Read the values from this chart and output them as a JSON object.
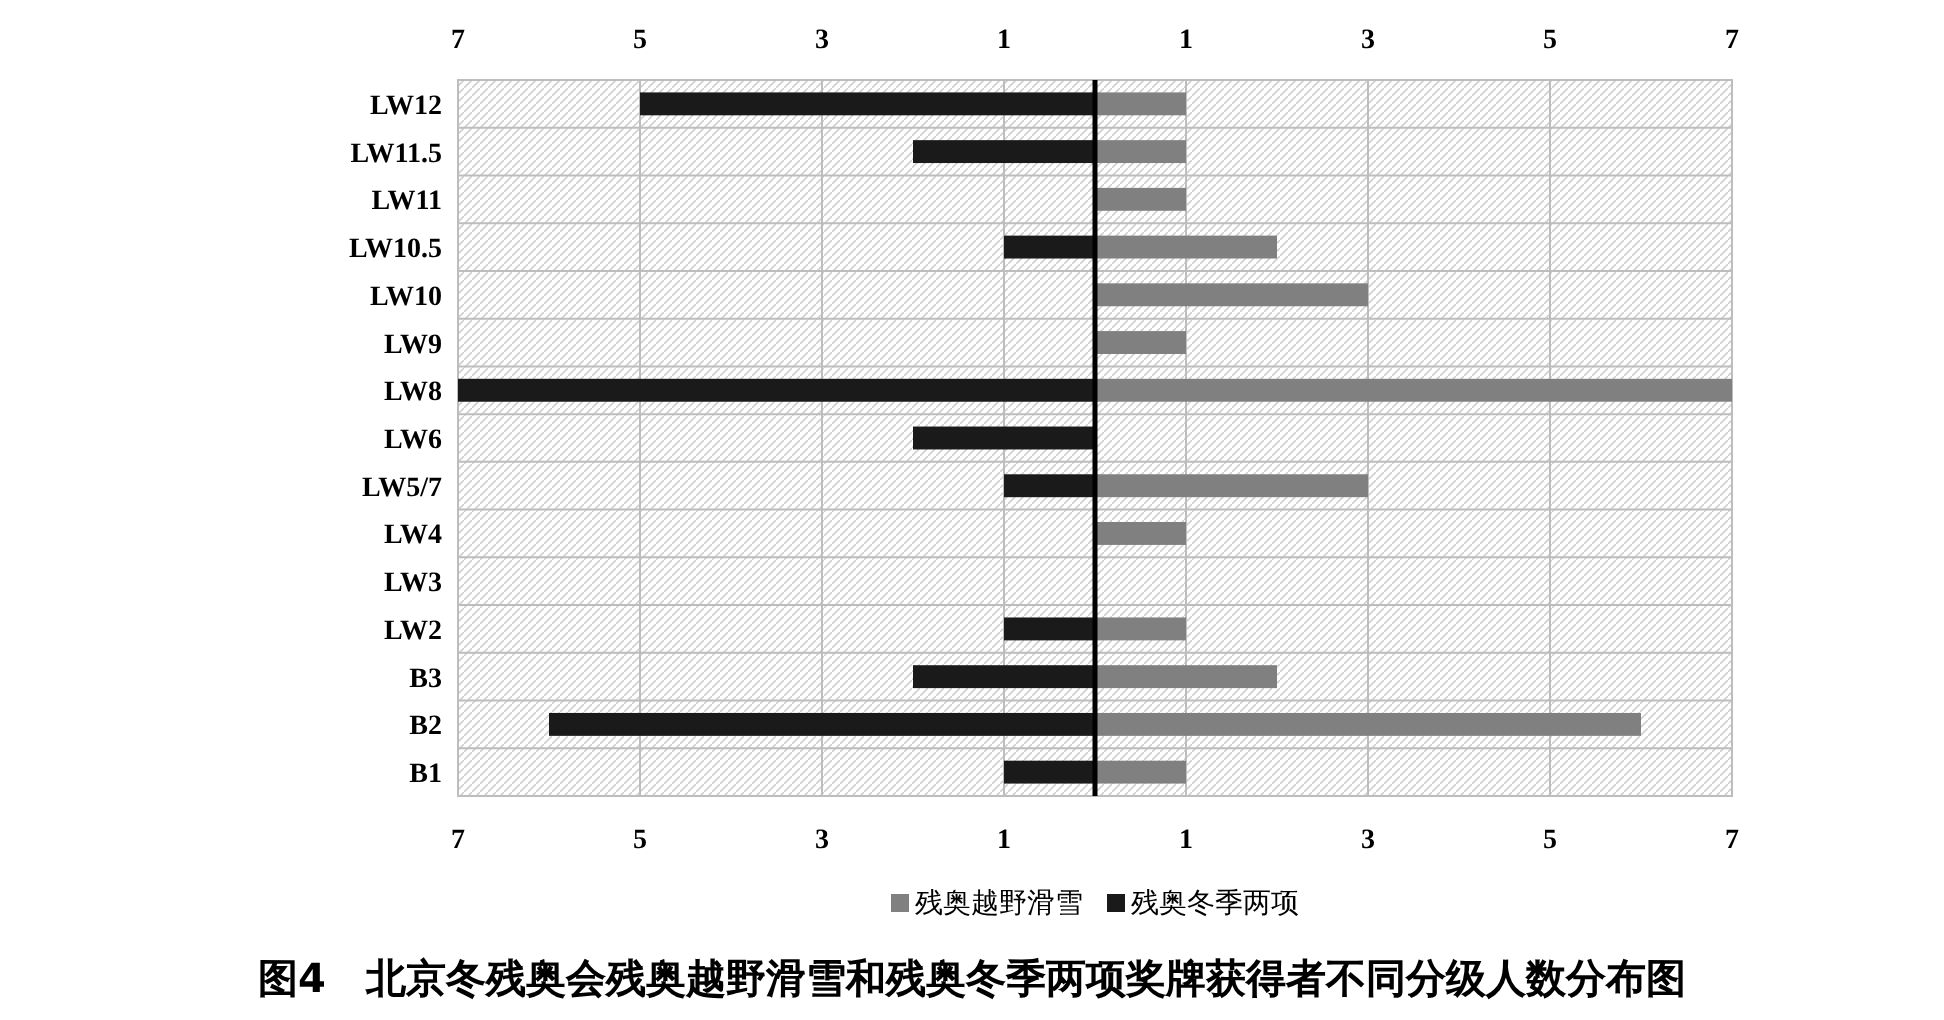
{
  "chart_data": {
    "type": "bar",
    "orientation": "horizontal",
    "stacked": true,
    "categories": [
      "LW12",
      "LW11.5",
      "LW11",
      "LW10.5",
      "LW10",
      "LW9",
      "LW8",
      "LW6",
      "LW5/7",
      "LW4",
      "LW3",
      "LW2",
      "B3",
      "B2",
      "B1"
    ],
    "series": [
      {
        "name": "残奥越野滑雪",
        "color": "#808080",
        "values": [
          1,
          1,
          1,
          2,
          3,
          1,
          7,
          0,
          3,
          1,
          0,
          1,
          2,
          6,
          1
        ]
      },
      {
        "name": "残奥冬季两项",
        "color": "#1a1a1a",
        "values": [
          -5,
          -2,
          0,
          -1,
          0,
          0,
          -7,
          -2,
          -1,
          0,
          0,
          -1,
          -2,
          -6,
          -1
        ]
      }
    ],
    "xlim": [
      -7,
      7
    ],
    "xticks": [
      {
        "value": -7,
        "label": "7"
      },
      {
        "value": -5,
        "label": "5"
      },
      {
        "value": -3,
        "label": "3"
      },
      {
        "value": -1,
        "label": "1"
      },
      1,
      3,
      5,
      7
    ],
    "x2lim": [
      -7,
      7
    ],
    "x2ticks": [
      {
        "value": -7,
        "label": "7"
      },
      {
        "value": -5,
        "label": "5"
      },
      {
        "value": -3,
        "label": "3"
      },
      {
        "value": -1,
        "label": "1"
      },
      1,
      3,
      5,
      7
    ],
    "ref_lines": [
      {
        "axis": "x",
        "value": 0,
        "color": "#000000"
      }
    ],
    "grid": true,
    "legend": "bottom",
    "annotations": [
      "图4　北京冬残奥会残奥越野滑雪和残奥冬季两项奖牌获得者不同分级人数分布图"
    ]
  }
}
